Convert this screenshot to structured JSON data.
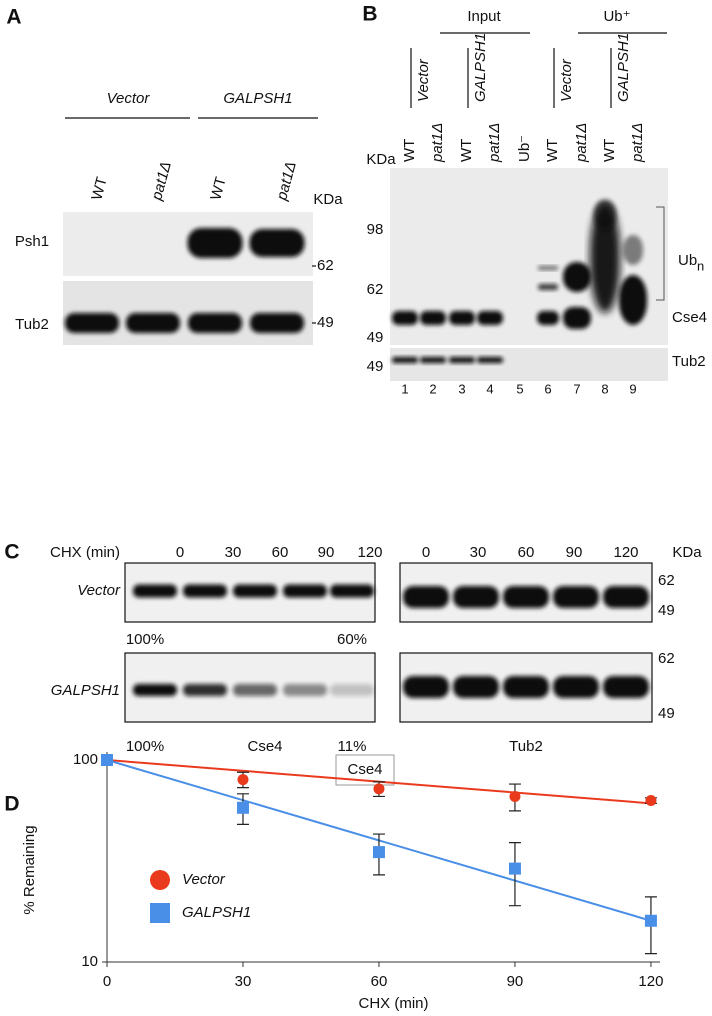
{
  "panel_a": {
    "letter": "A",
    "groups": [
      "Vector",
      "GALPSH1"
    ],
    "lanes": [
      "WT",
      "pat1Δ",
      "WT",
      "pat1Δ"
    ],
    "unit": "KDa",
    "blots": [
      {
        "label": "Psh1",
        "marker": "62"
      },
      {
        "label": "Tub2",
        "marker": "49"
      }
    ]
  },
  "panel_b": {
    "letter": "B",
    "sections": [
      "Input",
      "Ub⁺"
    ],
    "groups": [
      "Vector",
      "GALPSH1",
      "Vector",
      "GALPSH1"
    ],
    "lanes": [
      "WT",
      "pat1Δ",
      "WT",
      "pat1Δ",
      "Ub⁻",
      "WT",
      "pat1Δ",
      "WT",
      "pat1Δ"
    ],
    "unit": "KDa",
    "markers": [
      "98",
      "62",
      "49"
    ],
    "tub_marker": "49",
    "ubn": "Ub",
    "ubn_sub": "n",
    "cse4": "Cse4",
    "tub2": "Tub2",
    "lane_numbers": [
      "1",
      "2",
      "3",
      "4",
      "5",
      "6",
      "7",
      "8",
      "9"
    ]
  },
  "panel_c": {
    "letter": "C",
    "treatment": "CHX (min)",
    "times": [
      "0",
      "30",
      "60",
      "90",
      "120"
    ],
    "unit": "KDa",
    "rows": [
      "Vector",
      "GALPSH1"
    ],
    "percents": [
      [
        "100%",
        "60%"
      ],
      [
        "100%",
        "11%"
      ]
    ],
    "cse4": "Cse4",
    "tub2": "Tub2",
    "markers": [
      "62",
      "49"
    ]
  },
  "panel_d": {
    "letter": "D"
  },
  "chart_data": {
    "type": "scatter",
    "title": "Cse4",
    "x_label": "CHX (min)",
    "y_label": "% Remaining",
    "log_y": true,
    "xlim": [
      0,
      122
    ],
    "ylim": [
      10,
      100
    ],
    "xticks": [
      0,
      30,
      60,
      90,
      120
    ],
    "yticks": [
      10,
      100
    ],
    "legend": "left",
    "series": [
      {
        "name": "Vector",
        "color": "#ea3a1e",
        "marker": "circle",
        "x": [
          0,
          30,
          60,
          90,
          120
        ],
        "values": [
          100,
          80,
          72,
          66,
          63
        ],
        "errors": [
          null,
          7,
          6,
          10,
          2
        ],
        "fit_x": [
          0,
          120
        ],
        "fit": [
          100,
          61
        ]
      },
      {
        "name": "GALPSH1",
        "color": "#4a8fe7",
        "marker": "square",
        "x": [
          0,
          30,
          60,
          90,
          120
        ],
        "values": [
          100,
          58,
          35,
          29,
          16
        ],
        "errors": [
          null,
          10,
          8,
          10,
          5
        ],
        "fit_x": [
          0,
          120
        ],
        "fit": [
          100,
          16
        ]
      }
    ]
  }
}
